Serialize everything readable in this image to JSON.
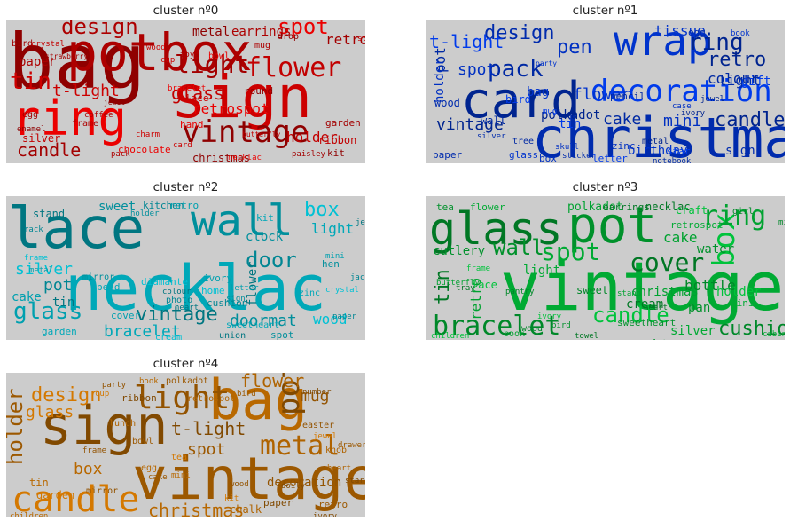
{
  "figure": {
    "panels": [
      {
        "title": "cluster nº0",
        "color": "#cc0000",
        "words": [
          "bag",
          "potbox",
          "sign",
          "ring",
          "light",
          "flower",
          "vintage",
          "design",
          "tin",
          "spot",
          "candle",
          "glass",
          "metal",
          "earrings",
          "t-light",
          "retrospot",
          "retro",
          "holder",
          "christmas",
          "paper",
          "lace",
          "hand",
          "egg",
          "silver",
          "enamel",
          "frame",
          "charm",
          "chocolate",
          "bird",
          "crystal",
          "drop",
          "mug",
          "wood",
          "bowl",
          "garden",
          "ribbon",
          "kit",
          "pack",
          "card",
          "necklac",
          "paisley",
          "butterfly",
          "round",
          "toy",
          "cup",
          "bracelet",
          "strawberry",
          "storage",
          "jewel",
          "coffee"
        ]
      },
      {
        "title": "cluster nº1",
        "color": "#0033cc",
        "words": [
          "card",
          "christmas",
          "wrap",
          "decoration",
          "pack",
          "pen",
          "ring",
          "design",
          "tissue",
          "t-light",
          "pot",
          "spot",
          "retro",
          "light",
          "flower",
          "gift",
          "colour",
          "holder",
          "vintage",
          "wood",
          "bag",
          "tin",
          "cake",
          "mini",
          "candle",
          "sign",
          "birthday",
          "star",
          "wall",
          "box",
          "polkadot",
          "paper",
          "glass",
          "letter",
          "tree",
          "zinc",
          "metal",
          "egg",
          "book",
          "bird",
          "pencil",
          "case",
          "ivory",
          "silver",
          "party",
          "mug",
          "notebook",
          "skull",
          "jewel",
          "sticker"
        ]
      },
      {
        "title": "cluster nº2",
        "color": "#00a8b8",
        "words": [
          "lace",
          "wall",
          "necklac",
          "box",
          "door",
          "glass",
          "vintage",
          "doormat",
          "bracelet",
          "silver",
          "pot",
          "cake",
          "tin",
          "clock",
          "light",
          "wood",
          "kitchen",
          "retro",
          "stand",
          "sweet",
          "kit",
          "home",
          "cushion",
          "ivory",
          "flower",
          "mirror",
          "bead",
          "diamante",
          "photo",
          "cover",
          "union",
          "spot",
          "garden",
          "frame",
          "rack",
          "metal",
          "jewel",
          "hen",
          "zinc",
          "crystal",
          "paper",
          "letter",
          "heart",
          "sign",
          "sweetheart",
          "cream",
          "jack",
          "mini",
          "colour",
          "holder"
        ]
      },
      {
        "title": "cluster nº3",
        "color": "#00aa33",
        "words": [
          "glass",
          "pot",
          "vintage",
          "box",
          "bracelet",
          "ring",
          "cover",
          "wall",
          "spot",
          "candle",
          "cushion",
          "retro",
          "tin",
          "cutlery",
          "light",
          "lace",
          "sweet",
          "christmas",
          "cream",
          "pan",
          "silver",
          "holder",
          "bottle",
          "cake",
          "necklac",
          "water",
          "retrospot",
          "craft",
          "girl",
          "polkadot",
          "earrings",
          "tea",
          "flower",
          "frame",
          "pantry",
          "stand",
          "heart",
          "sweetheart",
          "mini",
          "ivory",
          "wood",
          "book",
          "tray",
          "bird",
          "cabinet",
          "children",
          "mirror",
          "butterfly",
          "towel",
          "letter"
        ]
      },
      {
        "title": "cluster nº4",
        "color": "#b86800",
        "words": [
          "sign",
          "vintage",
          "bag",
          "candle",
          "light",
          "metal",
          "pot",
          "holder",
          "christmas",
          "design",
          "mug",
          "flower",
          "t-light",
          "spot",
          "box",
          "glass",
          "decoration",
          "chalk",
          "paper",
          "retro",
          "tin",
          "garden",
          "mirror",
          "lunch",
          "ribbon",
          "bowl",
          "egg",
          "tea",
          "easter",
          "knob",
          "number",
          "polkadot",
          "book",
          "cup",
          "party",
          "retrospot",
          "ivory",
          "drawer",
          "children",
          "jewel",
          "frame",
          "plate",
          "doily",
          "cake",
          "mini",
          "kit",
          "wood",
          "heart",
          "star",
          "bird"
        ]
      }
    ]
  }
}
